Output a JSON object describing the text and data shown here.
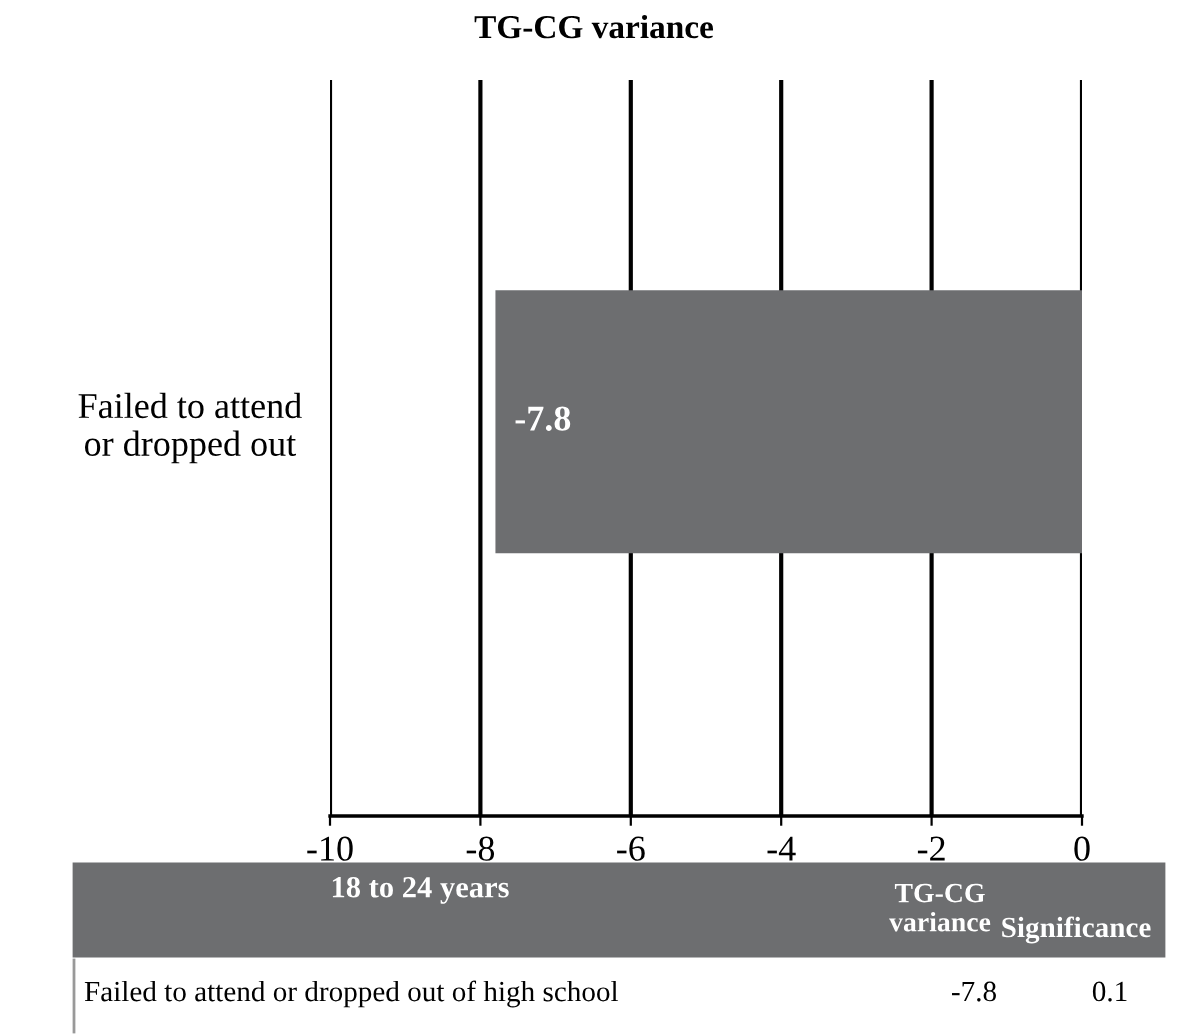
{
  "chart_data": {
    "type": "bar",
    "orientation": "horizontal",
    "title": "TG-CG variance",
    "categories": [
      "Failed to attend\nor dropped out"
    ],
    "values": [
      -7.8
    ],
    "color": "#6d6e70",
    "xlim": [
      -10,
      0
    ],
    "xticks": [
      -10,
      -8,
      -6,
      -4,
      -2,
      0
    ],
    "grid": "x",
    "data_labels": true,
    "annotations": [
      "18 to 24 years",
      "TG-CG variance",
      "Significance",
      "Failed to attend or dropped out of high school",
      "-7.8",
      "0.1"
    ]
  }
}
